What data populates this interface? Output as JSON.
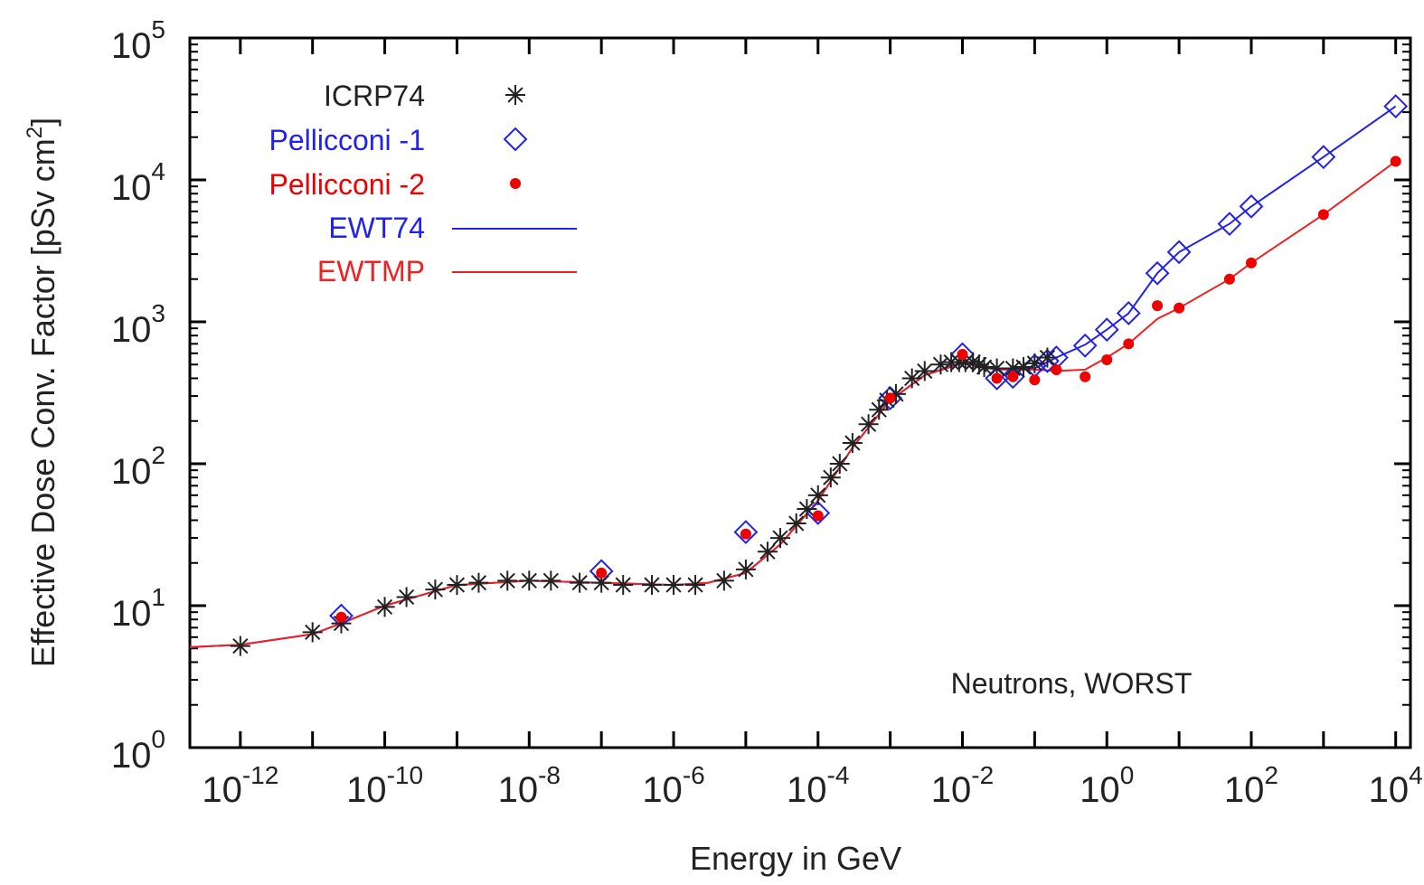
{
  "chart_data": {
    "type": "scatter",
    "xlabel": "Energy in GeV",
    "ylabel": "Effective Dose Conv. Factor  [pSv cm",
    "ylabel_sup": "2",
    "ylabel_end": "]",
    "annotation": "Neutrons, WORST",
    "x_scale": "log",
    "y_scale": "log",
    "xlim": [
      2e-13,
      16000.0
    ],
    "ylim": [
      1,
      100000
    ],
    "grid": false,
    "legend_position": "top-left",
    "x_ticks": [
      {
        "base": "10",
        "exp": "-12",
        "value": 1e-12
      },
      {
        "base": "10",
        "exp": "-10",
        "value": 1e-10
      },
      {
        "base": "10",
        "exp": "-8",
        "value": 1e-08
      },
      {
        "base": "10",
        "exp": "-6",
        "value": 1e-06
      },
      {
        "base": "10",
        "exp": "-4",
        "value": 0.0001
      },
      {
        "base": "10",
        "exp": "-2",
        "value": 0.01
      },
      {
        "base": "10",
        "exp": "0",
        "value": 1
      },
      {
        "base": "10",
        "exp": "2",
        "value": 100
      },
      {
        "base": "10",
        "exp": "4",
        "value": 10000
      }
    ],
    "y_ticks": [
      {
        "base": "10",
        "exp": "0",
        "value": 1
      },
      {
        "base": "10",
        "exp": "1",
        "value": 10
      },
      {
        "base": "10",
        "exp": "2",
        "value": 100
      },
      {
        "base": "10",
        "exp": "3",
        "value": 1000
      },
      {
        "base": "10",
        "exp": "4",
        "value": 10000
      },
      {
        "base": "10",
        "exp": "5",
        "value": 100000
      }
    ],
    "series": [
      {
        "name": "ICRP74",
        "kind": "points",
        "marker": "asterisk",
        "color": "#222222",
        "x": [
          1e-12,
          1e-11,
          2.5e-11,
          1e-10,
          2e-10,
          5e-10,
          1e-09,
          2e-09,
          5e-09,
          1e-08,
          2e-08,
          5e-08,
          1e-07,
          2e-07,
          5e-07,
          1e-06,
          2e-06,
          5e-06,
          1e-05,
          2e-05,
          3e-05,
          5e-05,
          7e-05,
          0.0001,
          0.00015,
          0.0002,
          0.0003,
          0.0005,
          0.0007,
          0.0009,
          0.0012,
          0.002,
          0.003,
          0.005,
          0.007,
          0.009,
          0.011,
          0.014,
          0.017,
          0.02,
          0.03,
          0.05,
          0.07,
          0.1,
          0.15
        ],
        "y": [
          5.2,
          6.5,
          7.5,
          9.8,
          11.5,
          13,
          14,
          14.5,
          15,
          15,
          15,
          14.5,
          14.5,
          14,
          14,
          14,
          14,
          15,
          18,
          24,
          30,
          38,
          48,
          60,
          80,
          100,
          140,
          190,
          240,
          280,
          310,
          400,
          450,
          500,
          520,
          520,
          520,
          520,
          500,
          480,
          470,
          470,
          480,
          510,
          560
        ]
      },
      {
        "name": "Pellicconi -1",
        "kind": "points",
        "marker": "diamond",
        "color": "#2222ee",
        "x": [
          2.5e-11,
          1e-07,
          1e-05,
          0.0001,
          0.001,
          0.01,
          0.03,
          0.05,
          0.1,
          0.15,
          0.2,
          0.5,
          1,
          2,
          5,
          10,
          50,
          100,
          1000,
          10000
        ],
        "y": [
          8.5,
          17.5,
          33,
          45,
          290,
          590,
          400,
          410,
          490,
          530,
          560,
          680,
          880,
          1150,
          2200,
          3100,
          4900,
          6500,
          14500,
          33000
        ]
      },
      {
        "name": "Pellicconi -2",
        "kind": "points",
        "marker": "dot",
        "color": "#ee0000",
        "x": [
          2.5e-11,
          1e-07,
          1e-05,
          0.0001,
          0.001,
          0.01,
          0.03,
          0.05,
          0.1,
          0.2,
          0.5,
          1,
          2,
          5,
          10,
          50,
          100,
          1000,
          10000
        ],
        "y": [
          8.3,
          17,
          32,
          43,
          290,
          590,
          400,
          410,
          390,
          460,
          410,
          540,
          700,
          1300,
          1250,
          2000,
          2600,
          5700,
          13500
        ]
      },
      {
        "name": "EWT74",
        "kind": "line",
        "color": "#2222ee",
        "x": [
          2e-13,
          1e-12,
          1e-11,
          2.5e-11,
          1e-10,
          1e-09,
          1e-08,
          1e-07,
          1e-06,
          3e-06,
          1e-05,
          3e-05,
          0.0001,
          0.0003,
          0.001,
          0.003,
          0.01,
          0.03,
          0.1,
          0.2,
          0.5,
          1,
          2,
          5,
          10,
          50,
          100,
          1000,
          10000
        ],
        "y": [
          5.1,
          5.3,
          6.3,
          7.5,
          10,
          14,
          15,
          14.5,
          14,
          14.5,
          17,
          27,
          55,
          130,
          280,
          420,
          520,
          470,
          470,
          560,
          690,
          880,
          1150,
          2200,
          3100,
          4900,
          6500,
          14500,
          33000
        ]
      },
      {
        "name": "EWTMP",
        "kind": "line",
        "color": "#ee2222",
        "x": [
          2e-13,
          1e-12,
          1e-11,
          2.5e-11,
          1e-10,
          1e-09,
          1e-08,
          1e-07,
          1e-06,
          3e-06,
          1e-05,
          3e-05,
          0.0001,
          0.0003,
          0.001,
          0.003,
          0.01,
          0.03,
          0.1,
          0.2,
          0.5,
          1,
          2,
          5,
          10,
          50,
          100,
          1000,
          10000
        ],
        "y": [
          5.1,
          5.3,
          6.3,
          7.5,
          10,
          14,
          15,
          14.5,
          14,
          14.5,
          17,
          27,
          55,
          130,
          280,
          420,
          510,
          460,
          460,
          450,
          460,
          560,
          700,
          1050,
          1250,
          2000,
          2600,
          5700,
          13500
        ]
      }
    ]
  }
}
